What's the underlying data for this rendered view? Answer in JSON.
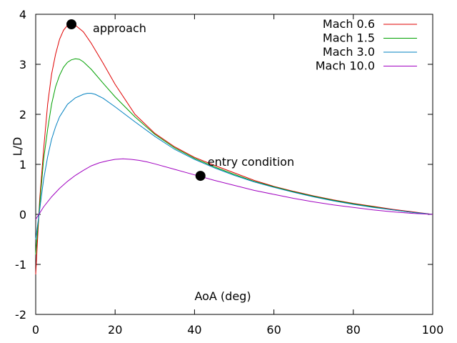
{
  "chart_data": {
    "type": "line",
    "title": "",
    "xlabel": "AoA (deg)",
    "ylabel": "L/D",
    "xlim": [
      0,
      100
    ],
    "ylim": [
      -2,
      4
    ],
    "x_ticks": [
      0,
      20,
      40,
      60,
      80,
      100
    ],
    "y_ticks": [
      -2,
      -1,
      0,
      1,
      2,
      3,
      4
    ],
    "x_tick_labels": [
      "0",
      "20",
      "40",
      "60",
      "80",
      "100"
    ],
    "y_tick_labels": [
      "-2",
      "-1",
      "0",
      "1",
      "2",
      "3",
      "4"
    ],
    "grid": false,
    "legend_position": "top-right",
    "series": [
      {
        "name": "Mach 0.6",
        "color": "#e00000",
        "x": [
          0,
          1,
          2,
          3,
          4,
          5,
          6,
          7,
          8,
          9,
          10,
          12,
          14,
          17,
          20,
          25,
          30,
          35,
          40,
          45,
          50,
          55,
          60,
          65,
          70,
          75,
          80,
          85,
          90,
          95,
          100
        ],
        "y": [
          -1.2,
          0.3,
          1.3,
          2.2,
          2.8,
          3.2,
          3.5,
          3.68,
          3.78,
          3.8,
          3.78,
          3.65,
          3.42,
          3.02,
          2.6,
          2.0,
          1.62,
          1.35,
          1.14,
          0.98,
          0.83,
          0.68,
          0.56,
          0.46,
          0.37,
          0.29,
          0.22,
          0.16,
          0.1,
          0.05,
          0.0
        ]
      },
      {
        "name": "Mach 1.5",
        "color": "#00a000",
        "x": [
          0,
          1,
          2,
          3,
          4,
          5,
          6,
          7,
          8,
          9,
          10,
          11,
          12,
          14,
          17,
          20,
          25,
          30,
          35,
          40,
          45,
          50,
          55,
          60,
          65,
          70,
          75,
          80,
          85,
          90,
          95,
          100
        ],
        "y": [
          -0.8,
          0.2,
          1.1,
          1.7,
          2.2,
          2.55,
          2.78,
          2.94,
          3.04,
          3.09,
          3.11,
          3.1,
          3.05,
          2.9,
          2.62,
          2.35,
          1.95,
          1.6,
          1.33,
          1.12,
          0.95,
          0.8,
          0.66,
          0.55,
          0.45,
          0.36,
          0.28,
          0.21,
          0.15,
          0.09,
          0.04,
          0.0
        ]
      },
      {
        "name": "Mach 3.0",
        "color": "#0080c0",
        "x": [
          0,
          1,
          2,
          3,
          4,
          5,
          6,
          8,
          10,
          12,
          13,
          14,
          15,
          17,
          20,
          25,
          30,
          35,
          40,
          45,
          50,
          55,
          60,
          65,
          70,
          75,
          80,
          85,
          90,
          95,
          100
        ],
        "y": [
          -0.5,
          0.1,
          0.7,
          1.15,
          1.5,
          1.75,
          1.95,
          2.2,
          2.33,
          2.4,
          2.42,
          2.42,
          2.4,
          2.32,
          2.15,
          1.85,
          1.56,
          1.3,
          1.1,
          0.93,
          0.78,
          0.65,
          0.54,
          0.44,
          0.35,
          0.27,
          0.2,
          0.14,
          0.09,
          0.04,
          0.0
        ]
      },
      {
        "name": "Mach 10.0",
        "color": "#a000c0",
        "x": [
          0,
          2,
          4,
          6,
          8,
          10,
          12,
          14,
          16,
          18,
          20,
          22,
          24,
          26,
          28,
          30,
          35,
          40,
          45,
          50,
          55,
          60,
          65,
          70,
          75,
          80,
          85,
          90,
          95,
          100
        ],
        "y": [
          -0.1,
          0.15,
          0.35,
          0.52,
          0.66,
          0.78,
          0.88,
          0.97,
          1.03,
          1.07,
          1.1,
          1.11,
          1.1,
          1.08,
          1.05,
          1.01,
          0.9,
          0.79,
          0.68,
          0.58,
          0.48,
          0.4,
          0.32,
          0.25,
          0.19,
          0.14,
          0.09,
          0.05,
          0.02,
          0.0
        ]
      }
    ],
    "markers": [
      {
        "label": "approach",
        "x": 9,
        "y": 3.8
      },
      {
        "label": "entry condition",
        "x": 41.5,
        "y": 0.77
      }
    ]
  }
}
